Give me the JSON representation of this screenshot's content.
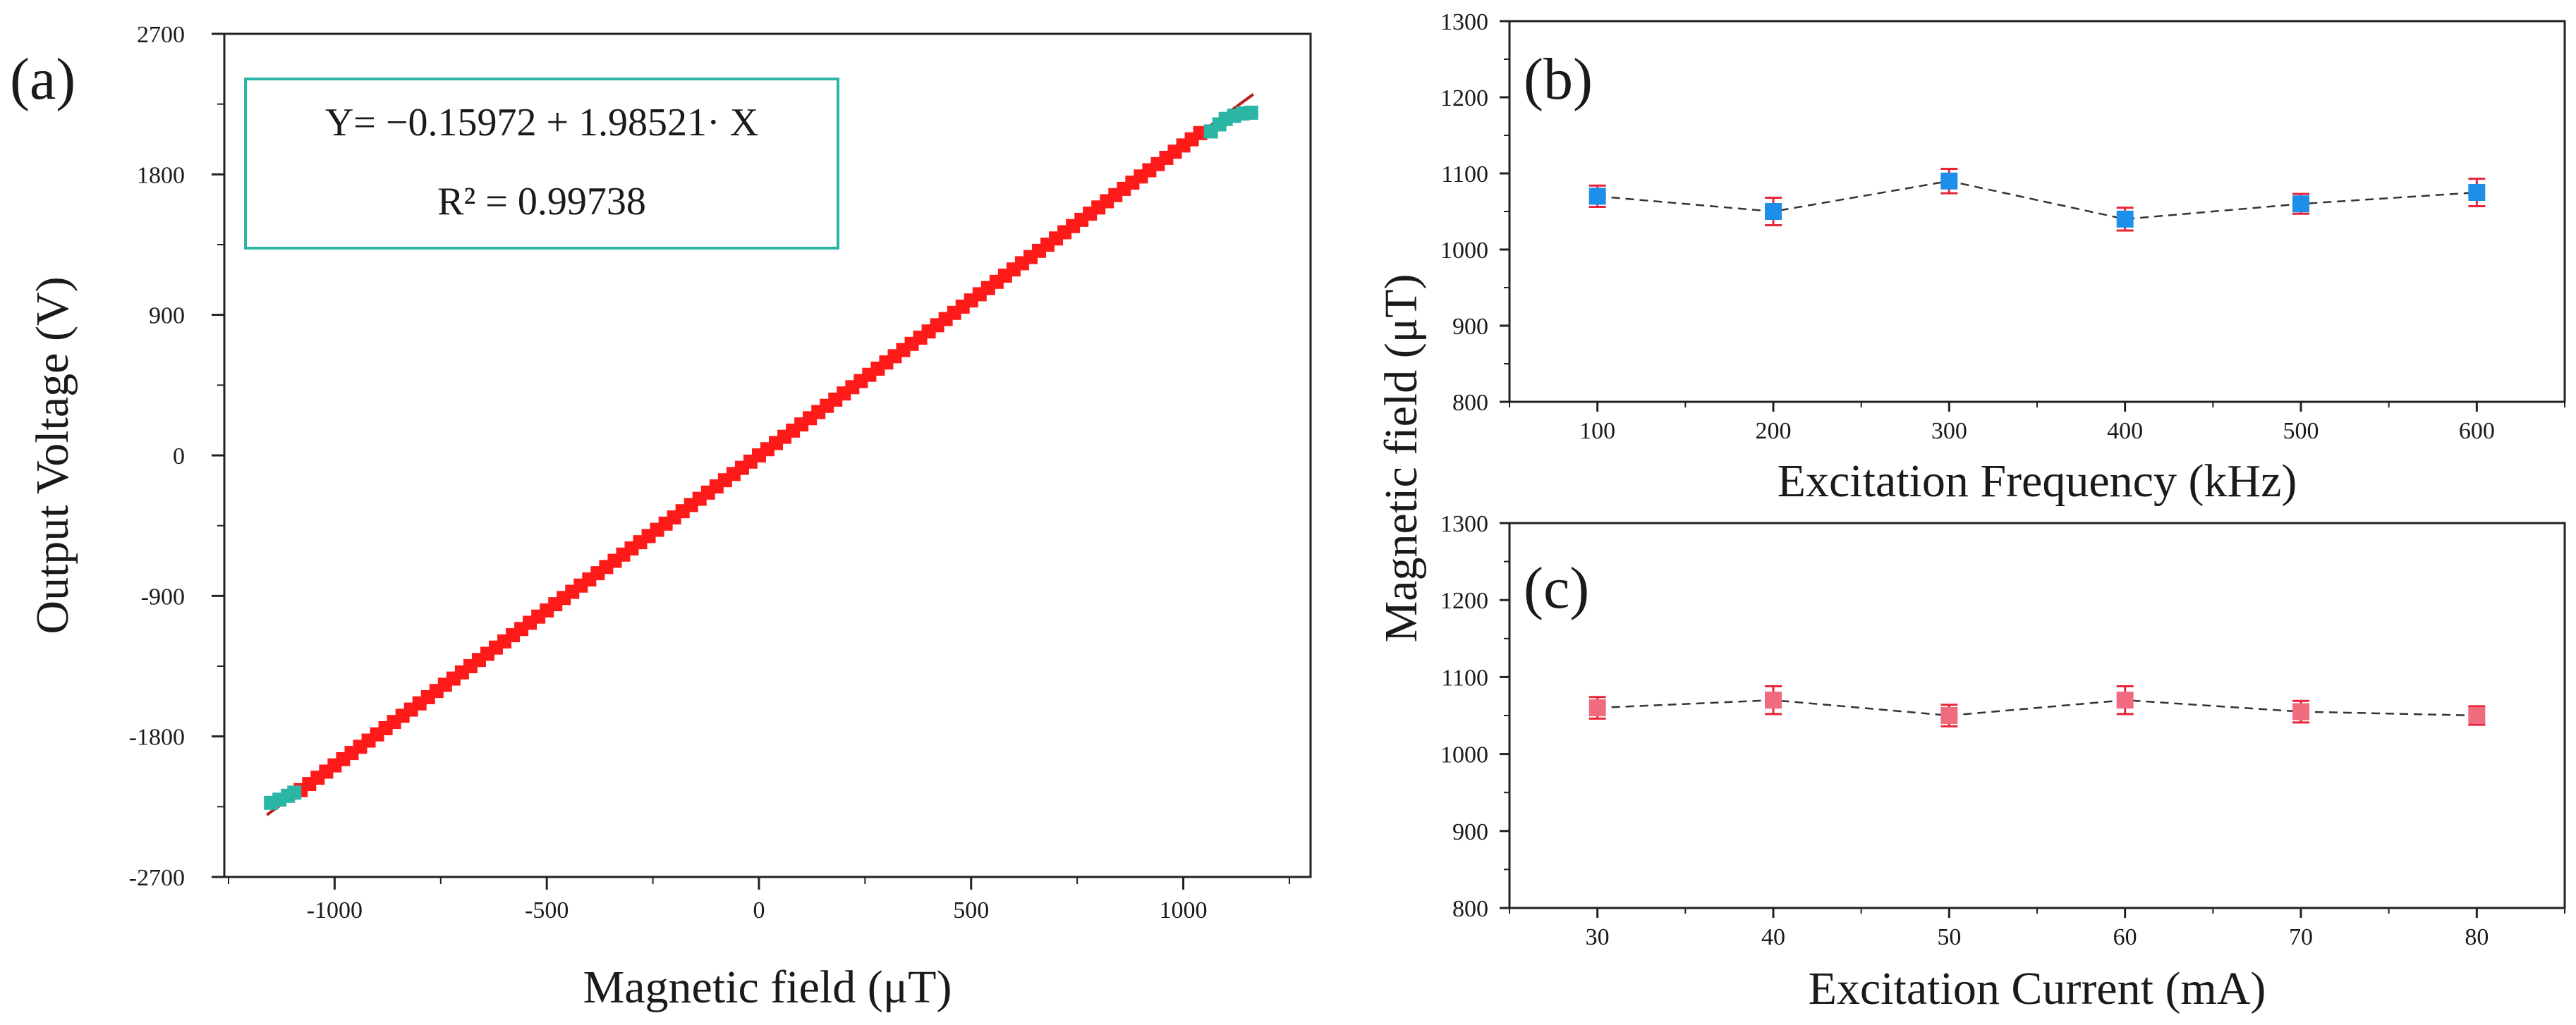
{
  "chart_data": [
    {
      "panel_label": "(a)",
      "type": "scatter",
      "xlabel": "Magnetic field (μT)",
      "ylabel": "Output Voltage (V)",
      "xlim": [
        -1260,
        1300
      ],
      "ylim": [
        -2700,
        2700
      ],
      "xticks": [
        -1000,
        -500,
        0,
        500,
        1000
      ],
      "yticks": [
        -2700,
        -1800,
        -900,
        0,
        900,
        1800,
        2700
      ],
      "annotation": {
        "line1": "Y= −0.15972 + 1.98521· X",
        "line2": "R² = 0.99738"
      },
      "fit": {
        "intercept": -0.15972,
        "slope": 1.98521,
        "r_squared": 0.99738
      },
      "series": [
        {
          "color": "#ff1a1a",
          "x_range": [
            -1080,
            1040
          ],
          "step": 20
        },
        {
          "color": "#2ab5a5",
          "points": [
            [
              -1150,
              -2225
            ],
            [
              -1130,
              -2205
            ],
            [
              -1110,
              -2180
            ],
            [
              -1095,
              -2160
            ],
            [
              1065,
              2075
            ],
            [
              1085,
              2120
            ],
            [
              1100,
              2155
            ],
            [
              1120,
              2175
            ],
            [
              1140,
              2190
            ],
            [
              1160,
              2195
            ]
          ]
        }
      ],
      "grid": false
    },
    {
      "panel_label": "(b)",
      "type": "line",
      "xlabel": "Excitation Frequency (kHz)",
      "ylabel": "Magnetic field (μT)",
      "x": [
        100,
        200,
        300,
        400,
        500,
        600
      ],
      "y": [
        1070,
        1050,
        1090,
        1040,
        1060,
        1075
      ],
      "yerr": [
        14,
        18,
        16,
        15,
        13,
        18
      ],
      "xlim": [
        50,
        650
      ],
      "ylim": [
        800,
        1300
      ],
      "yticks": [
        800,
        900,
        1000,
        1100,
        1200,
        1300
      ],
      "marker_color": "#1e8fe8",
      "error_color": "#e8253a",
      "line_style": "dashed",
      "grid": false
    },
    {
      "panel_label": "(c)",
      "type": "line",
      "xlabel": "Excitation Current (mA)",
      "ylabel": "Magnetic field (μT)",
      "x": [
        30,
        40,
        50,
        60,
        70,
        80
      ],
      "y": [
        1060,
        1070,
        1050,
        1070,
        1055,
        1050
      ],
      "yerr": [
        14,
        18,
        14,
        18,
        14,
        12
      ],
      "xlim": [
        25,
        85
      ],
      "ylim": [
        800,
        1300
      ],
      "yticks": [
        800,
        900,
        1000,
        1100,
        1200,
        1300
      ],
      "marker_color": "#f06a80",
      "error_color": "#e8253a",
      "line_style": "dashed",
      "grid": false
    }
  ]
}
